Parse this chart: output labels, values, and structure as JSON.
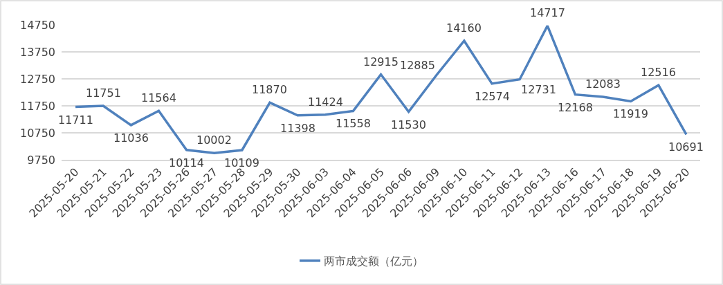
{
  "chart_data": {
    "type": "line",
    "categories": [
      "2025-05-20",
      "2025-05-21",
      "2025-05-22",
      "2025-05-23",
      "2025-05-26",
      "2025-05-27",
      "2025-05-28",
      "2025-05-29",
      "2025-05-30",
      "2025-06-03",
      "2025-06-04",
      "2025-06-05",
      "2025-06-06",
      "2025-06-09",
      "2025-06-10",
      "2025-06-11",
      "2025-06-12",
      "2025-06-13",
      "2025-06-16",
      "2025-06-17",
      "2025-06-18",
      "2025-06-19",
      "2025-06-20"
    ],
    "series": [
      {
        "name": "两市成交额（亿元）",
        "color": "#4f81bd",
        "values": [
          11711,
          11751,
          11036,
          11564,
          10114,
          10002,
          10109,
          11870,
          11398,
          11424,
          11558,
          12915,
          11530,
          12885,
          14160,
          12574,
          12731,
          14717,
          12168,
          12083,
          11919,
          12516,
          10691
        ]
      }
    ],
    "ylim": [
      9750,
      14750
    ],
    "yticks": [
      9750,
      10750,
      11750,
      12750,
      13750,
      14750
    ],
    "grid": "y",
    "legend": "bottom",
    "data_labels": true
  }
}
